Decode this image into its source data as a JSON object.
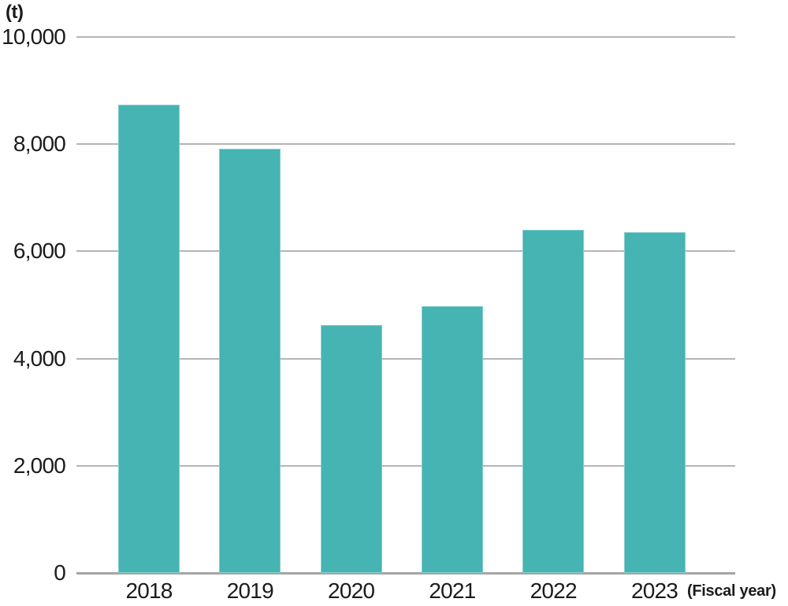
{
  "chart_data": {
    "type": "bar",
    "title": "",
    "unit": "(t)",
    "x_axis_note": "(Fiscal year)",
    "categories": [
      "2018",
      "2019",
      "2020",
      "2021",
      "2022",
      "2023"
    ],
    "values": [
      8730,
      7910,
      4630,
      4980,
      6400,
      6360
    ],
    "xlabel": "Fiscal year",
    "ylabel": "t",
    "ylim": [
      0,
      10000
    ],
    "yticks": [
      0,
      2000,
      4000,
      6000,
      8000,
      10000
    ],
    "grid": "horizontal",
    "legend": "none",
    "bar_color": "#45b4b2",
    "gridline_color": "#b5b5b5",
    "axis_line_color": "#a5a5a5",
    "text_color": "#1b1b1b",
    "background_color": "#ffffff"
  }
}
